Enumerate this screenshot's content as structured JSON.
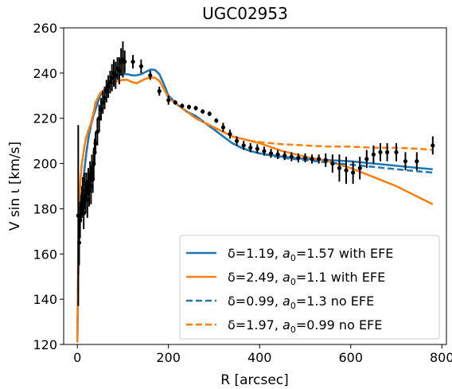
{
  "chart_data": {
    "type": "line",
    "title": "UGC02953",
    "xlabel": "R [arcsec]",
    "ylabel": "V sin ι [km/s]",
    "xlim": [
      -30,
      810
    ],
    "ylim": [
      120,
      260
    ],
    "xticks": [
      0,
      200,
      400,
      600,
      800
    ],
    "yticks": [
      120,
      140,
      160,
      180,
      200,
      220,
      240,
      260
    ],
    "grid": false,
    "legend_position": "lower-right",
    "series": [
      {
        "name": "δ=1.19, a0=1.57 with EFE",
        "legend": {
          "pre": "δ=1.19, ",
          "var": "a",
          "sub": "0",
          "post": "=1.57 with EFE"
        },
        "color": "#1f77b4",
        "dash": "solid",
        "x": [
          0,
          2,
          4,
          6,
          8,
          10,
          13,
          16,
          20,
          25,
          30,
          35,
          40,
          45,
          50,
          60,
          70,
          80,
          90,
          100,
          110,
          120,
          130,
          140,
          150,
          160,
          170,
          180,
          190,
          200,
          220,
          240,
          260,
          280,
          300,
          320,
          340,
          360,
          380,
          400,
          450,
          500,
          550,
          600,
          650,
          700,
          750,
          780
        ],
        "y": [
          121,
          150,
          168,
          177,
          183,
          187,
          192,
          198,
          205,
          212,
          217,
          221,
          224,
          227,
          230,
          233,
          236,
          238,
          239,
          239.5,
          239.5,
          239,
          239,
          239.5,
          240.5,
          241.5,
          241.5,
          239.5,
          235,
          230,
          226,
          223,
          221,
          218,
          215,
          212,
          209,
          207,
          205.5,
          204.5,
          203,
          202,
          201.5,
          201,
          200,
          199,
          198,
          197.5
        ]
      },
      {
        "name": "δ=2.49, a0=1.1 with EFE",
        "legend": {
          "pre": "δ=2.49, ",
          "var": "a",
          "sub": "0",
          "post": "=1.1 with EFE"
        },
        "color": "#ff7f0e",
        "dash": "solid",
        "x": [
          0,
          2,
          4,
          6,
          8,
          10,
          13,
          16,
          20,
          25,
          30,
          35,
          40,
          45,
          50,
          60,
          70,
          80,
          90,
          100,
          110,
          120,
          130,
          140,
          150,
          160,
          170,
          180,
          190,
          200,
          220,
          240,
          260,
          280,
          300,
          320,
          340,
          360,
          380,
          400,
          450,
          500,
          550,
          600,
          650,
          700,
          750,
          780
        ],
        "y": [
          121,
          160,
          180,
          190,
          196,
          200,
          204,
          208,
          212,
          215,
          218,
          222,
          227,
          229,
          231,
          233,
          235,
          236,
          236.5,
          237,
          237,
          236,
          235.5,
          236.5,
          237.5,
          238,
          238,
          236.5,
          233,
          229,
          226,
          223,
          220,
          218,
          216,
          214,
          212,
          211,
          210,
          209,
          205.5,
          203,
          201,
          198,
          194,
          190,
          185,
          182
        ]
      },
      {
        "name": "δ=0.99, a0=1.3 no EFE",
        "legend": {
          "pre": "δ=0.99, ",
          "var": "a",
          "sub": "0",
          "post": "=1.3 no EFE"
        },
        "color": "#1f77b4",
        "dash": "dashed",
        "x": [
          0,
          2,
          4,
          6,
          8,
          10,
          13,
          16,
          20,
          25,
          30,
          35,
          40,
          45,
          50,
          60,
          70,
          80,
          90,
          100,
          110,
          120,
          130,
          140,
          150,
          160,
          170,
          180,
          190,
          200,
          220,
          240,
          260,
          280,
          300,
          320,
          340,
          360,
          380,
          400,
          450,
          500,
          550,
          600,
          650,
          700,
          750,
          780
        ],
        "y": [
          121,
          150,
          168,
          177,
          183,
          187,
          192,
          198,
          205,
          212,
          217,
          221,
          224,
          227,
          230,
          233,
          236,
          238,
          239,
          239.5,
          239.5,
          239,
          239,
          239.5,
          240.5,
          241.5,
          241.5,
          239.5,
          235,
          230,
          226,
          223,
          221,
          218,
          215,
          212,
          209,
          207,
          205.5,
          204.5,
          202.5,
          201.5,
          200.5,
          199.5,
          198.5,
          197.5,
          196.5,
          196
        ]
      },
      {
        "name": "δ=1.97, a0=0.99 no EFE",
        "legend": {
          "pre": "δ=1.97, ",
          "var": "a",
          "sub": "0",
          "post": "=0.99 no EFE"
        },
        "color": "#ff7f0e",
        "dash": "dashed",
        "x": [
          0,
          2,
          4,
          6,
          8,
          10,
          13,
          16,
          20,
          25,
          30,
          35,
          40,
          45,
          50,
          60,
          70,
          80,
          90,
          100,
          110,
          120,
          130,
          140,
          150,
          160,
          170,
          180,
          190,
          200,
          220,
          240,
          260,
          280,
          300,
          320,
          340,
          360,
          380,
          400,
          450,
          500,
          550,
          600,
          650,
          700,
          750,
          780
        ],
        "y": [
          121,
          160,
          180,
          190,
          196,
          200,
          204,
          208,
          212,
          215,
          218,
          222,
          227,
          229,
          231,
          233,
          235,
          236,
          236.5,
          237,
          237,
          236,
          235.5,
          236.5,
          237.5,
          238,
          238,
          236.5,
          233,
          229,
          226,
          223,
          220,
          218,
          216,
          214,
          212,
          211,
          210,
          209.5,
          208.5,
          208,
          207.5,
          207.5,
          207,
          207,
          206.5,
          206
        ]
      }
    ],
    "observations": {
      "name": "data",
      "color": "#000000",
      "points": [
        {
          "x": 2,
          "y": 177,
          "e": 40
        },
        {
          "x": 4,
          "y": 165,
          "e": 10
        },
        {
          "x": 6,
          "y": 175,
          "e": 8
        },
        {
          "x": 8,
          "y": 180,
          "e": 6
        },
        {
          "x": 10,
          "y": 183,
          "e": 7
        },
        {
          "x": 12,
          "y": 186,
          "e": 8
        },
        {
          "x": 14,
          "y": 178,
          "e": 7
        },
        {
          "x": 16,
          "y": 188,
          "e": 8
        },
        {
          "x": 18,
          "y": 185,
          "e": 7
        },
        {
          "x": 20,
          "y": 190,
          "e": 6
        },
        {
          "x": 22,
          "y": 184,
          "e": 8
        },
        {
          "x": 24,
          "y": 192,
          "e": 6
        },
        {
          "x": 26,
          "y": 188,
          "e": 7
        },
        {
          "x": 28,
          "y": 195,
          "e": 6
        },
        {
          "x": 30,
          "y": 190,
          "e": 8
        },
        {
          "x": 32,
          "y": 198,
          "e": 6
        },
        {
          "x": 34,
          "y": 193,
          "e": 6
        },
        {
          "x": 36,
          "y": 200,
          "e": 7
        },
        {
          "x": 38,
          "y": 205,
          "e": 6
        },
        {
          "x": 40,
          "y": 209,
          "e": 5
        },
        {
          "x": 44,
          "y": 214,
          "e": 6
        },
        {
          "x": 48,
          "y": 220,
          "e": 6
        },
        {
          "x": 52,
          "y": 224,
          "e": 5
        },
        {
          "x": 56,
          "y": 227,
          "e": 5
        },
        {
          "x": 60,
          "y": 229,
          "e": 5
        },
        {
          "x": 64,
          "y": 232,
          "e": 5
        },
        {
          "x": 68,
          "y": 234,
          "e": 5
        },
        {
          "x": 72,
          "y": 236,
          "e": 5
        },
        {
          "x": 76,
          "y": 238,
          "e": 6
        },
        {
          "x": 80,
          "y": 240,
          "e": 6
        },
        {
          "x": 84,
          "y": 239,
          "e": 6
        },
        {
          "x": 88,
          "y": 242,
          "e": 5
        },
        {
          "x": 92,
          "y": 241,
          "e": 6
        },
        {
          "x": 96,
          "y": 245,
          "e": 6
        },
        {
          "x": 100,
          "y": 246,
          "e": 8
        },
        {
          "x": 104,
          "y": 245,
          "e": 5
        },
        {
          "x": 122,
          "y": 245,
          "e": 3
        },
        {
          "x": 140,
          "y": 243,
          "e": 3
        },
        {
          "x": 160,
          "y": 239,
          "e": 2
        },
        {
          "x": 180,
          "y": 232,
          "e": 2
        },
        {
          "x": 200,
          "y": 228,
          "e": 2
        },
        {
          "x": 215,
          "y": 227,
          "e": 1
        },
        {
          "x": 230,
          "y": 225.5,
          "e": 1
        },
        {
          "x": 245,
          "y": 225,
          "e": 1
        },
        {
          "x": 260,
          "y": 224.5,
          "e": 1
        },
        {
          "x": 275,
          "y": 223,
          "e": 1
        },
        {
          "x": 290,
          "y": 222,
          "e": 1
        },
        {
          "x": 305,
          "y": 219,
          "e": 1
        },
        {
          "x": 320,
          "y": 216,
          "e": 2
        },
        {
          "x": 335,
          "y": 213,
          "e": 2
        },
        {
          "x": 350,
          "y": 210,
          "e": 2
        },
        {
          "x": 365,
          "y": 208,
          "e": 2
        },
        {
          "x": 380,
          "y": 207,
          "e": 2
        },
        {
          "x": 395,
          "y": 206.5,
          "e": 2
        },
        {
          "x": 410,
          "y": 205.5,
          "e": 2
        },
        {
          "x": 425,
          "y": 204.5,
          "e": 2
        },
        {
          "x": 440,
          "y": 204,
          "e": 2
        },
        {
          "x": 455,
          "y": 203.5,
          "e": 2
        },
        {
          "x": 470,
          "y": 203,
          "e": 2
        },
        {
          "x": 485,
          "y": 202.5,
          "e": 2
        },
        {
          "x": 500,
          "y": 202.5,
          "e": 2
        },
        {
          "x": 515,
          "y": 202,
          "e": 2
        },
        {
          "x": 530,
          "y": 202,
          "e": 2
        },
        {
          "x": 545,
          "y": 201.5,
          "e": 3
        },
        {
          "x": 560,
          "y": 200,
          "e": 4
        },
        {
          "x": 575,
          "y": 198,
          "e": 6
        },
        {
          "x": 590,
          "y": 197,
          "e": 6
        },
        {
          "x": 605,
          "y": 196,
          "e": 5
        },
        {
          "x": 620,
          "y": 198,
          "e": 5
        },
        {
          "x": 635,
          "y": 202,
          "e": 4
        },
        {
          "x": 650,
          "y": 204,
          "e": 4
        },
        {
          "x": 665,
          "y": 205,
          "e": 4
        },
        {
          "x": 680,
          "y": 205,
          "e": 4
        },
        {
          "x": 700,
          "y": 205,
          "e": 4
        },
        {
          "x": 720,
          "y": 201,
          "e": 4
        },
        {
          "x": 745,
          "y": 201,
          "e": 4
        },
        {
          "x": 780,
          "y": 208,
          "e": 4
        }
      ]
    }
  }
}
